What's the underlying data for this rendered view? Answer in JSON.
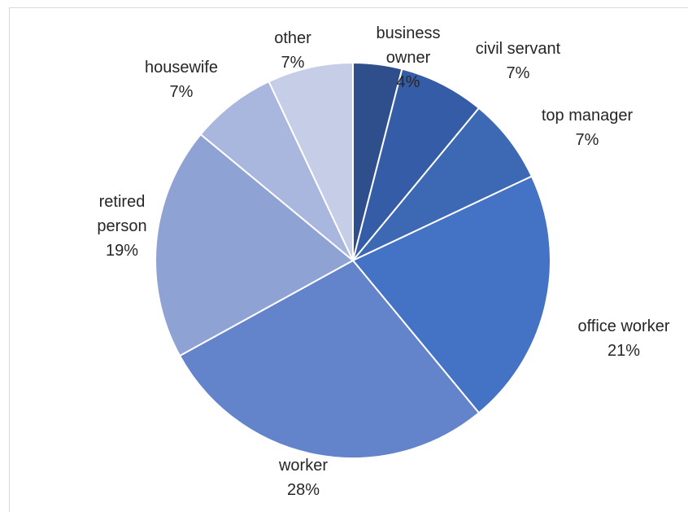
{
  "chart_data": {
    "type": "pie",
    "categories": [
      "business owner",
      "civil servant",
      "top manager",
      "office worker",
      "worker",
      "retired person",
      "housewife",
      "other"
    ],
    "values": [
      4,
      7,
      7,
      21,
      28,
      19,
      7,
      7
    ],
    "labels": [
      {
        "lines": [
          "business",
          "owner"
        ],
        "pct": "4%"
      },
      {
        "lines": [
          "civil servant"
        ],
        "pct": "7%"
      },
      {
        "lines": [
          "top manager"
        ],
        "pct": "7%"
      },
      {
        "lines": [
          "office worker"
        ],
        "pct": "21%"
      },
      {
        "lines": [
          "worker"
        ],
        "pct": "28%"
      },
      {
        "lines": [
          "retired",
          "person"
        ],
        "pct": "19%"
      },
      {
        "lines": [
          "housewife"
        ],
        "pct": "7%"
      },
      {
        "lines": [
          "other"
        ],
        "pct": "7%"
      }
    ],
    "colors": [
      "#2f4f8c",
      "#355ca7",
      "#3c68b4",
      "#4472c4",
      "#6384cb",
      "#8fa2d4",
      "#a9b6dd",
      "#c5cde7"
    ],
    "start_angle_deg": 0,
    "direction": "clockwise",
    "title": "",
    "legend": "none"
  }
}
